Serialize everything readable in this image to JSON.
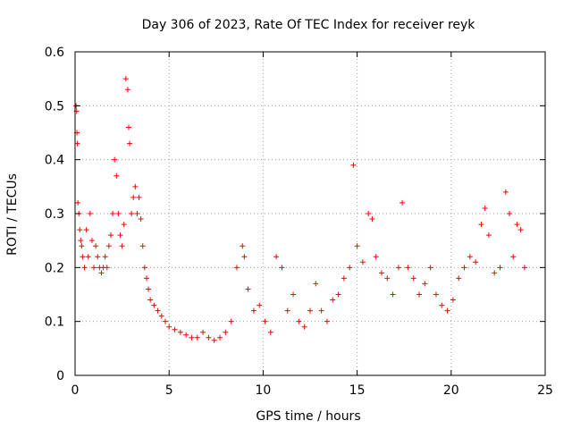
{
  "chart_data": {
    "type": "scatter",
    "title": "Day 306 of 2023, Rate Of TEC Index for receiver reyk",
    "xlabel": "GPS time / hours",
    "ylabel": "ROTI / TECUs",
    "xlim": [
      0,
      25
    ],
    "ylim": [
      0,
      0.6
    ],
    "x_ticks": [
      0,
      5,
      10,
      15,
      20,
      25
    ],
    "y_ticks": [
      0,
      0.1,
      0.2,
      0.3,
      0.4,
      0.5,
      0.6
    ],
    "grid": true,
    "marker": "plus",
    "marker_color": "#ff0000",
    "series": [
      {
        "x": [
          0.05,
          0.08,
          0.1,
          0.12,
          0.15,
          0.2,
          0.25,
          0.3,
          0.35,
          0.4,
          0.5,
          0.6,
          0.7,
          0.8,
          0.9,
          1.0,
          1.1,
          1.2,
          1.3,
          1.4,
          1.5,
          1.6,
          1.7,
          1.8,
          1.9,
          2.0,
          2.1,
          2.2,
          2.3,
          2.4,
          2.5,
          2.6,
          2.7,
          2.8,
          2.85,
          2.9,
          3.0,
          3.1,
          3.2,
          3.3,
          3.4,
          3.5,
          3.6,
          3.7,
          3.8,
          3.9,
          4.0,
          4.2,
          4.4,
          4.6,
          4.8,
          5.0,
          5.3,
          5.6,
          5.9,
          6.2,
          6.5,
          6.8,
          7.1,
          7.4,
          7.7,
          8.0,
          8.3,
          8.6,
          8.9,
          9.0,
          9.2,
          9.5,
          9.8,
          10.1,
          10.4,
          10.7,
          11.0,
          11.3,
          11.6,
          11.9,
          12.2,
          12.5,
          12.8,
          13.1,
          13.4,
          13.7,
          14.0,
          14.3,
          14.6,
          14.8,
          15.0,
          15.3,
          15.6,
          15.8,
          16.0,
          16.3,
          16.6,
          16.9,
          17.2,
          17.4,
          17.7,
          18.0,
          18.3,
          18.6,
          18.9,
          19.2,
          19.5,
          19.8,
          20.1,
          20.4,
          20.7,
          21.0,
          21.3,
          21.6,
          21.8,
          22.0,
          22.3,
          22.6,
          22.9,
          23.1,
          23.3,
          23.5,
          23.7,
          23.9
        ],
        "y": [
          0.5,
          0.49,
          0.45,
          0.43,
          0.32,
          0.3,
          0.27,
          0.25,
          0.24,
          0.22,
          0.2,
          0.27,
          0.22,
          0.3,
          0.25,
          0.2,
          0.24,
          0.22,
          0.2,
          0.19,
          0.2,
          0.22,
          0.2,
          0.24,
          0.26,
          0.3,
          0.4,
          0.37,
          0.3,
          0.26,
          0.24,
          0.28,
          0.55,
          0.53,
          0.46,
          0.43,
          0.3,
          0.33,
          0.35,
          0.3,
          0.33,
          0.29,
          0.24,
          0.2,
          0.18,
          0.16,
          0.14,
          0.13,
          0.12,
          0.11,
          0.1,
          0.09,
          0.085,
          0.08,
          0.075,
          0.07,
          0.07,
          0.08,
          0.07,
          0.065,
          0.07,
          0.08,
          0.1,
          0.2,
          0.24,
          0.22,
          0.16,
          0.12,
          0.13,
          0.1,
          0.08,
          0.22,
          0.2,
          0.12,
          0.15,
          0.1,
          0.09,
          0.12,
          0.17,
          0.12,
          0.1,
          0.14,
          0.15,
          0.18,
          0.2,
          0.39,
          0.24,
          0.21,
          0.3,
          0.29,
          0.22,
          0.19,
          0.18,
          0.15,
          0.2,
          0.32,
          0.2,
          0.18,
          0.15,
          0.17,
          0.2,
          0.15,
          0.13,
          0.12,
          0.14,
          0.18,
          0.2,
          0.22,
          0.21,
          0.28,
          0.31,
          0.26,
          0.19,
          0.2,
          0.34,
          0.3,
          0.22,
          0.28,
          0.27,
          0.2
        ]
      }
    ]
  }
}
